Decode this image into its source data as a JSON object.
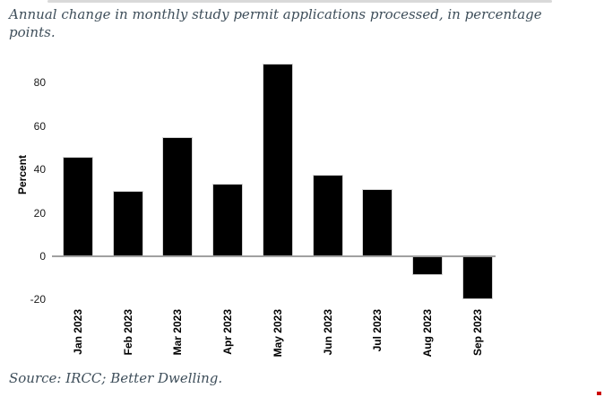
{
  "header": {
    "title": "Annual change in monthly study permit applications processed, in percentage points."
  },
  "footer": {
    "source": "Source: IRCC; Better Dwelling."
  },
  "chart_data": {
    "type": "bar",
    "title": "Annual change in monthly study permit applications processed, in percentage points.",
    "xlabel": "",
    "ylabel": "Percent",
    "categories": [
      "Jan 2023",
      "Feb 2023",
      "Mar 2023",
      "Apr 2023",
      "May 2023",
      "Jun 2023",
      "Jul 2023",
      "Aug 2023",
      "Sep 2023"
    ],
    "values": [
      46,
      30,
      55,
      33.5,
      89,
      37.5,
      31,
      -8.5,
      -20
    ],
    "yticks": [
      80,
      60,
      40,
      20,
      0,
      -20
    ],
    "ylim": [
      -25,
      92
    ],
    "grid": false,
    "legend": null,
    "bar_color": "#000000"
  },
  "colors": {
    "heading_text": "#3e4e5a",
    "bar": "#000000",
    "axis_line": "#a0a0a0",
    "tick_text": "#1a1a1a",
    "top_scrollbar": "#d9d9d9",
    "bottom_right_mark": "#cc0000"
  }
}
